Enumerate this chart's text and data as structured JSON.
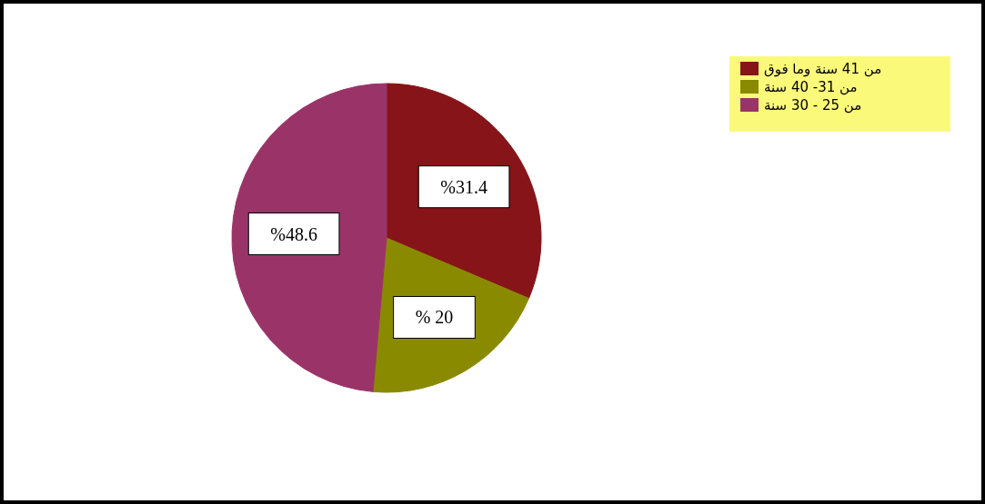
{
  "chart_data": {
    "type": "pie",
    "categories": [
      "من 41 سنة وما فوق",
      "من 31- 40 سنة",
      "من 25 - 30 سنة"
    ],
    "values": [
      31.4,
      20,
      48.6
    ],
    "colors": [
      "#861418",
      "#8a8a00",
      "#9a3468"
    ],
    "value_labels": [
      "%31.4",
      "% 20",
      "%48.6"
    ],
    "legend": "top right"
  }
}
